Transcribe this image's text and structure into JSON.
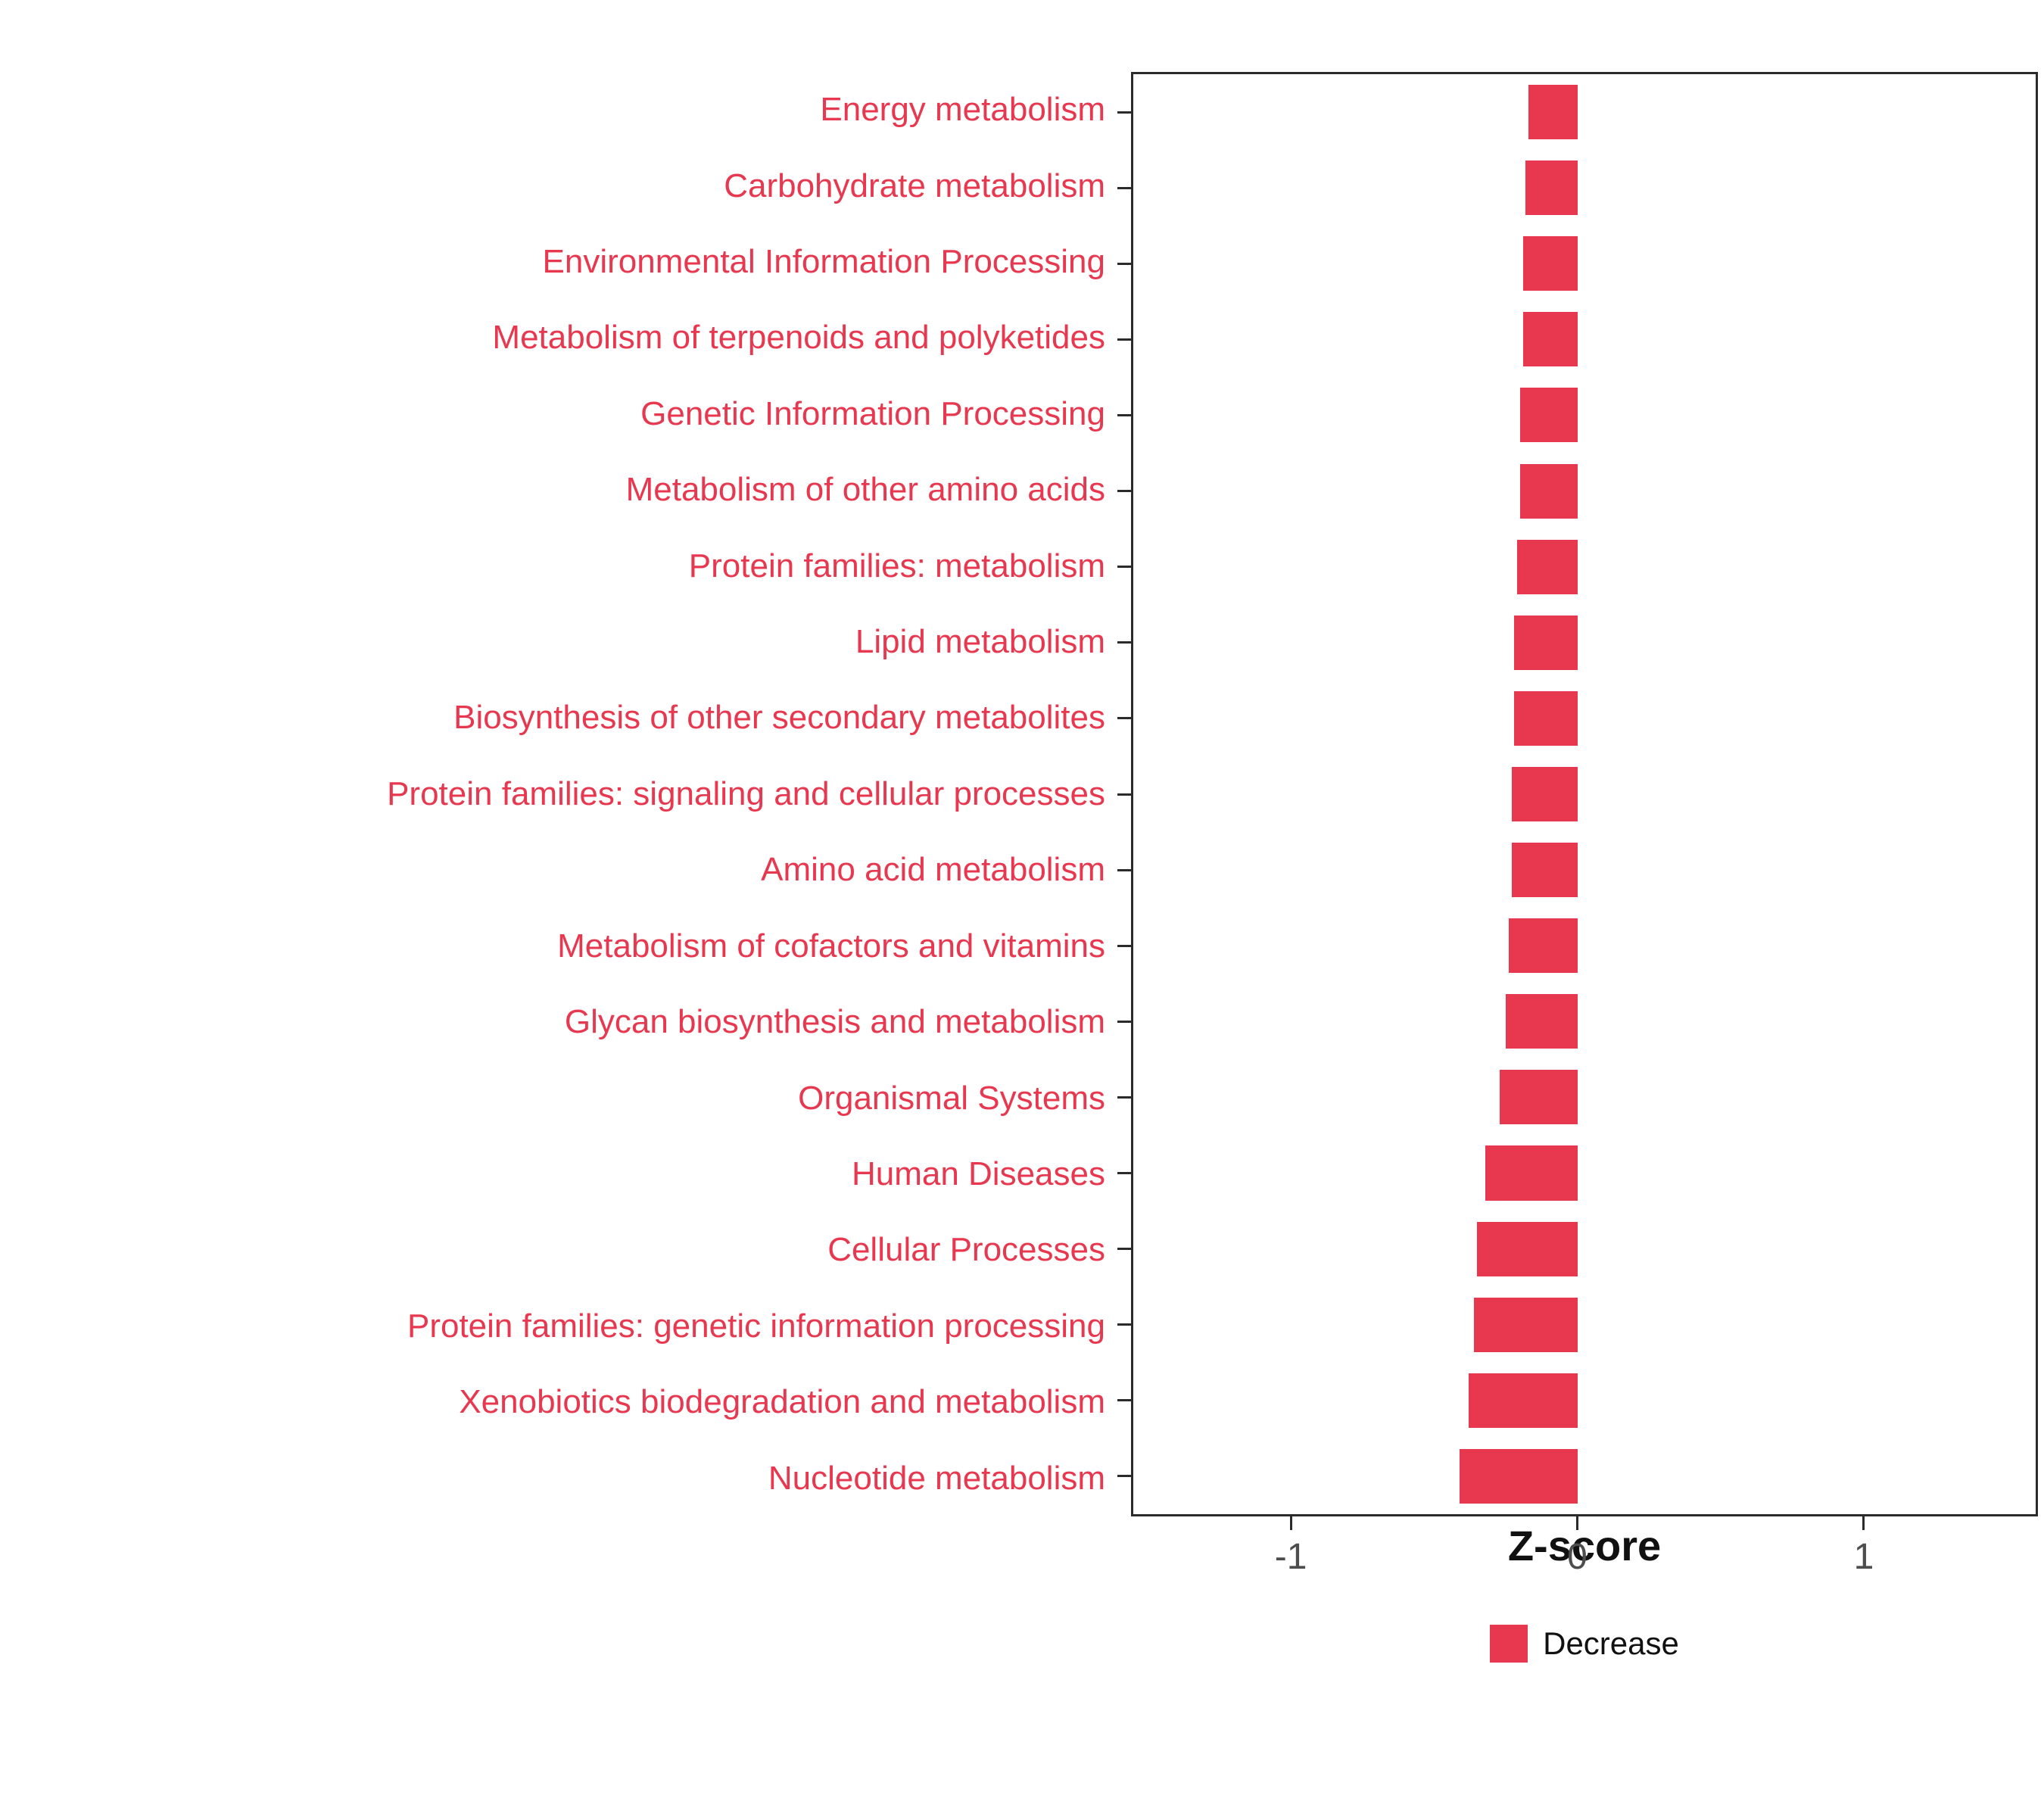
{
  "chart_data": {
    "type": "bar",
    "orientation": "horizontal",
    "title": "",
    "xlabel": "Z-score",
    "ylabel": "",
    "xlim": [
      -1.55,
      1.6
    ],
    "xticks": [
      -1,
      0,
      1
    ],
    "grid": false,
    "legend_position": "bottom",
    "categories": [
      "Energy metabolism",
      "Carbohydrate metabolism",
      "Environmental Information Processing",
      "Metabolism of terpenoids and polyketides",
      "Genetic Information Processing",
      "Metabolism of other amino acids",
      "Protein families: metabolism",
      "Lipid metabolism",
      "Biosynthesis of other secondary metabolites",
      "Protein families: signaling and cellular processes",
      "Amino acid metabolism",
      "Metabolism of cofactors and vitamins",
      "Glycan biosynthesis and metabolism",
      "Organismal Systems",
      "Human Diseases",
      "Cellular Processes",
      "Protein families: genetic information processing",
      "Xenobiotics biodegradation and metabolism",
      "Nucleotide metabolism"
    ],
    "values": [
      -0.17,
      -0.18,
      -0.19,
      -0.19,
      -0.2,
      -0.2,
      -0.21,
      -0.22,
      -0.22,
      -0.23,
      -0.23,
      -0.24,
      -0.25,
      -0.27,
      -0.32,
      -0.35,
      -0.36,
      -0.38,
      -0.41
    ],
    "series_name": "Decrease",
    "bar_color": "#E8384F",
    "category_label_color": "#E8384F",
    "axis_text_color": "#4d4d4d",
    "panel_border_color": "#2b2b2b",
    "legend": [
      {
        "label": "Decrease",
        "color": "#E8384F"
      }
    ]
  }
}
